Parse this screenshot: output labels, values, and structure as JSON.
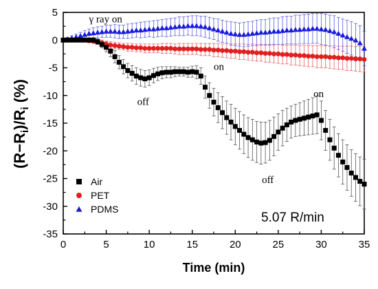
{
  "chart_data": {
    "type": "scatter",
    "xlabel": "Time (min)",
    "ylabel_parts": [
      "(R−R",
      "i",
      ")/R",
      "i",
      "  (%)"
    ],
    "xlim": [
      0,
      35
    ],
    "ylim": [
      -35,
      5
    ],
    "x_ticks": [
      0,
      5,
      10,
      15,
      20,
      25,
      30,
      35
    ],
    "y_ticks": [
      5,
      0,
      -5,
      -10,
      -15,
      -20,
      -25,
      -30,
      -35
    ],
    "x_tick_labels": [
      "0",
      "5",
      "10",
      "15",
      "20",
      "25",
      "30",
      "35"
    ],
    "y_tick_labels": [
      "5",
      "0",
      "-5",
      "-10",
      "-15",
      "-20",
      "-25",
      "-30",
      "-35"
    ],
    "grid": false,
    "legend_position": "lower-left",
    "series": [
      {
        "name": "Air",
        "marker": "square",
        "color": "#000000",
        "x": [
          0,
          0.5,
          1,
          1.5,
          2,
          2.5,
          3,
          3.5,
          4,
          4.5,
          5,
          5.5,
          6,
          6.5,
          7,
          7.5,
          8,
          8.5,
          9,
          9.5,
          10,
          10.5,
          11,
          11.5,
          12,
          12.5,
          13,
          13.5,
          14,
          14.5,
          15,
          15.5,
          16,
          16.5,
          17,
          17.5,
          18,
          18.5,
          19,
          19.5,
          20,
          20.5,
          21,
          21.5,
          22,
          22.5,
          23,
          23.5,
          24,
          24.5,
          25,
          25.5,
          26,
          26.5,
          27,
          27.5,
          28,
          28.5,
          29,
          29.5,
          30,
          30.5,
          31,
          31.5,
          32,
          32.5,
          33,
          33.5,
          34,
          34.5,
          35
        ],
        "y": [
          0,
          0,
          0,
          0,
          0,
          0,
          0,
          0,
          -0.3,
          -0.8,
          -1.3,
          -2,
          -3,
          -4,
          -4.8,
          -5.5,
          -6,
          -6.5,
          -6.8,
          -7,
          -6.8,
          -6.4,
          -6.1,
          -5.9,
          -5.8,
          -5.8,
          -5.7,
          -5.7,
          -5.7,
          -5.8,
          -5.7,
          -5.8,
          -6.5,
          -8.5,
          -10,
          -11.2,
          -12.2,
          -13.1,
          -14,
          -14.8,
          -15.6,
          -16.3,
          -17,
          -17.6,
          -18,
          -18.4,
          -18.6,
          -18.5,
          -18.1,
          -17.4,
          -16.6,
          -15.9,
          -15.3,
          -14.8,
          -14.5,
          -14.3,
          -14.1,
          -13.9,
          -13.7,
          -13.5,
          -14.5,
          -16.3,
          -18,
          -19.5,
          -20.8,
          -22,
          -23,
          -24,
          -24.8,
          -25.5,
          -26
        ],
        "err": [
          0,
          0.3,
          0.3,
          0.3,
          0.3,
          0.3,
          0.3,
          0.4,
          0.5,
          0.6,
          0.8,
          1,
          1.1,
          1.2,
          1.3,
          1.3,
          1.4,
          1.5,
          1.5,
          1.5,
          1.4,
          1.3,
          1.2,
          1.1,
          1,
          1,
          0.9,
          0.8,
          0.8,
          0.9,
          1,
          1.2,
          1.5,
          2,
          2.3,
          2.5,
          2.7,
          2.9,
          3,
          3.2,
          3.3,
          3.4,
          3.5,
          3.6,
          3.7,
          3.7,
          3.8,
          3.7,
          3.6,
          3.5,
          3.3,
          3.2,
          3,
          2.9,
          2.9,
          3,
          3.1,
          3.2,
          3.3,
          3.4,
          3.5,
          3.6,
          3.7,
          3.8,
          3.9,
          4,
          4.1,
          4.2,
          4.3,
          4.4,
          4.5
        ]
      },
      {
        "name": "PET",
        "marker": "circle",
        "color": "#e02020",
        "x": [
          0,
          0.5,
          1,
          1.5,
          2,
          2.5,
          3,
          3.5,
          4,
          4.5,
          5,
          5.5,
          6,
          6.5,
          7,
          7.5,
          8,
          8.5,
          9,
          9.5,
          10,
          10.5,
          11,
          11.5,
          12,
          12.5,
          13,
          13.5,
          14,
          14.5,
          15,
          15.5,
          16,
          16.5,
          17,
          17.5,
          18,
          18.5,
          19,
          19.5,
          20,
          20.5,
          21,
          21.5,
          22,
          22.5,
          23,
          23.5,
          24,
          24.5,
          25,
          25.5,
          26,
          26.5,
          27,
          27.5,
          28,
          28.5,
          29,
          29.5,
          30,
          30.5,
          31,
          31.5,
          32,
          32.5,
          33,
          33.5,
          34,
          34.5,
          35
        ],
        "y": [
          0,
          0,
          0,
          0,
          0,
          0,
          -0.1,
          -0.2,
          -0.3,
          -0.5,
          -0.7,
          -0.9,
          -1,
          -1.1,
          -1.2,
          -1.3,
          -1.3,
          -1.4,
          -1.4,
          -1.5,
          -1.5,
          -1.5,
          -1.5,
          -1.5,
          -1.5,
          -1.5,
          -1.6,
          -1.6,
          -1.6,
          -1.6,
          -1.6,
          -1.6,
          -1.7,
          -1.7,
          -1.7,
          -1.8,
          -1.8,
          -1.9,
          -1.9,
          -2,
          -2,
          -2.1,
          -2.1,
          -2.2,
          -2.2,
          -2.3,
          -2.3,
          -2.4,
          -2.4,
          -2.5,
          -2.5,
          -2.6,
          -2.6,
          -2.7,
          -2.7,
          -2.8,
          -2.8,
          -2.9,
          -2.9,
          -3,
          -3,
          -3,
          -3.1,
          -3.1,
          -3.2,
          -3.2,
          -3.3,
          -3.3,
          -3.4,
          -3.4,
          -3.5
        ],
        "err": [
          0,
          0.2,
          0.2,
          0.3,
          0.3,
          0.3,
          0.4,
          0.4,
          0.5,
          0.5,
          0.5,
          0.6,
          0.6,
          0.6,
          0.6,
          0.7,
          0.7,
          0.7,
          0.7,
          0.8,
          0.8,
          0.8,
          0.8,
          0.9,
          0.9,
          0.9,
          0.9,
          1,
          1,
          1,
          1,
          1,
          1.1,
          1.1,
          1.1,
          1.2,
          1.2,
          1.2,
          1.3,
          1.3,
          1.3,
          1.4,
          1.4,
          1.4,
          1.5,
          1.5,
          1.5,
          1.6,
          1.6,
          1.6,
          1.7,
          1.7,
          1.7,
          1.8,
          1.8,
          1.8,
          1.9,
          1.9,
          1.9,
          2,
          2,
          2,
          2,
          2.1,
          2.1,
          2.1,
          2.2,
          2.2,
          2.2,
          2.3,
          2.3
        ]
      },
      {
        "name": "PDMS",
        "marker": "triangle",
        "color": "#1a1adc",
        "x": [
          0,
          0.5,
          1,
          1.5,
          2,
          2.5,
          3,
          3.5,
          4,
          4.5,
          5,
          5.5,
          6,
          6.5,
          7,
          7.5,
          8,
          8.5,
          9,
          9.5,
          10,
          10.5,
          11,
          11.5,
          12,
          12.5,
          13,
          13.5,
          14,
          14.5,
          15,
          15.5,
          16,
          16.5,
          17,
          17.5,
          18,
          18.5,
          19,
          19.5,
          20,
          20.5,
          21,
          21.5,
          22,
          22.5,
          23,
          23.5,
          24,
          24.5,
          25,
          25.5,
          26,
          26.5,
          27,
          27.5,
          28,
          28.5,
          29,
          29.5,
          30,
          30.5,
          31,
          31.5,
          32,
          32.5,
          33,
          33.5,
          34,
          34.5,
          35
        ],
        "y": [
          0,
          0.2,
          0.4,
          0.6,
          0.8,
          1,
          1.2,
          1.3,
          1.4,
          1.5,
          1.6,
          1.6,
          1.6,
          1.5,
          1.5,
          1.6,
          1.7,
          1.8,
          1.8,
          1.9,
          2,
          2,
          2.1,
          2.2,
          2.2,
          2.3,
          2.4,
          2.5,
          2.5,
          2.6,
          2.6,
          2.6,
          2.5,
          2.4,
          2.2,
          2,
          1.8,
          1.6,
          1.4,
          1.2,
          1.1,
          1,
          1,
          1.1,
          1.2,
          1.3,
          1.4,
          1.4,
          1.5,
          1.6,
          1.6,
          1.7,
          1.8,
          1.8,
          1.9,
          1.9,
          2,
          2,
          2.1,
          2.1,
          2,
          1.9,
          1.7,
          1.5,
          1.2,
          0.9,
          0.6,
          0.3,
          0,
          -0.5,
          -1.5
        ],
        "err": [
          0,
          0.3,
          0.4,
          0.5,
          0.6,
          0.7,
          0.8,
          0.9,
          1,
          1,
          1.1,
          1.1,
          1.2,
          1.2,
          1.2,
          1.3,
          1.3,
          1.3,
          1.4,
          1.4,
          1.4,
          1.5,
          1.5,
          1.5,
          1.6,
          1.6,
          1.6,
          1.7,
          1.7,
          1.7,
          1.8,
          1.8,
          1.8,
          1.9,
          1.9,
          1.9,
          2,
          2,
          2,
          2.1,
          2.1,
          2.1,
          2.2,
          2.2,
          2.2,
          2.3,
          2.3,
          2.3,
          2.4,
          2.4,
          2.4,
          2.5,
          2.5,
          2.5,
          2.6,
          2.6,
          2.6,
          2.7,
          2.7,
          2.7,
          2.8,
          2.8,
          2.8,
          2.9,
          2.9,
          2.9,
          3,
          3,
          3,
          3.1,
          3.1
        ]
      }
    ],
    "annotations": [
      {
        "text": "γ ray on",
        "x": 3,
        "y": 3.2
      },
      {
        "text": "off",
        "x": 8.6,
        "y": -11.7
      },
      {
        "text": "on",
        "x": 17.5,
        "y": -5.4
      },
      {
        "text": "off",
        "x": 23.1,
        "y": -25.8
      },
      {
        "text": "on",
        "x": 29.1,
        "y": -10.3
      }
    ],
    "rate_label": "5.07 R/min"
  }
}
